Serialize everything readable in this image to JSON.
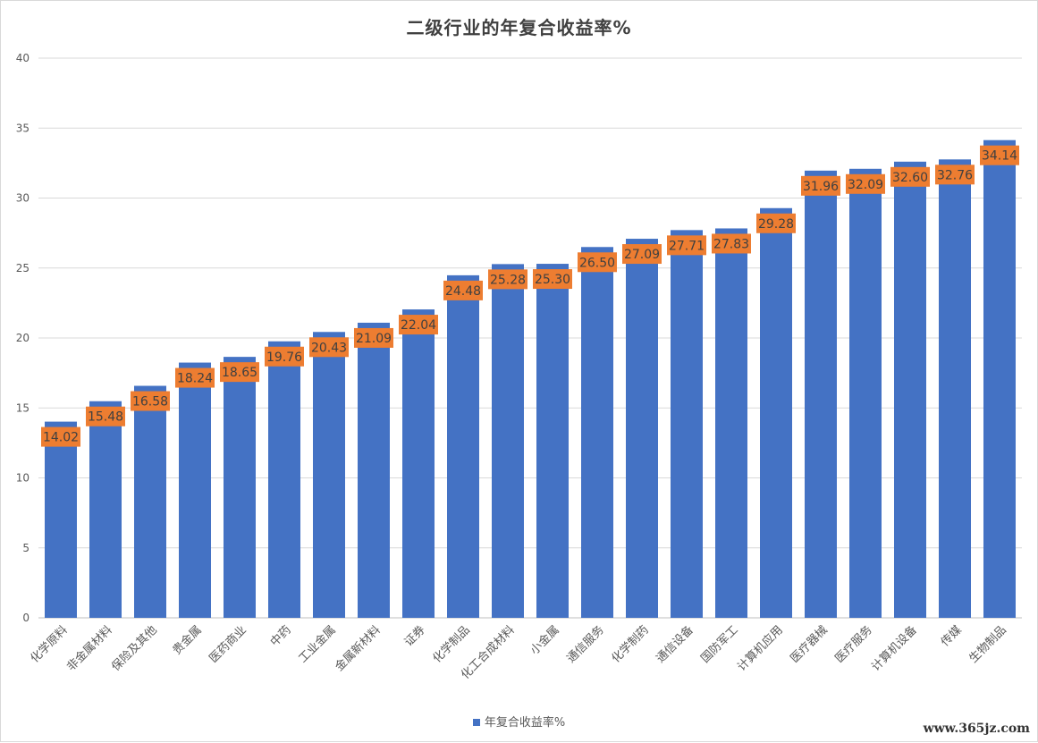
{
  "chart_data": {
    "type": "bar",
    "title": "二级行业的年复合收益率%",
    "xlabel": "",
    "ylabel": "",
    "ylim": [
      0,
      40
    ],
    "yticks": [
      0,
      5,
      10,
      15,
      20,
      25,
      30,
      35,
      40
    ],
    "grid": true,
    "legend_position": "bottom",
    "categories": [
      "化学原料",
      "非金属材料",
      "保险及其他",
      "贵金属",
      "医药商业",
      "中药",
      "工业金属",
      "金属新材料",
      "证券",
      "化学制品",
      "化工合成材料",
      "小金属",
      "通信服务",
      "化学制药",
      "通信设备",
      "国防军工",
      "计算机应用",
      "医疗器械",
      "医疗服务",
      "计算机设备",
      "传媒",
      "生物制品"
    ],
    "series": [
      {
        "name": "年复合收益率%",
        "color": "#4472c4",
        "values": [
          14.02,
          15.48,
          16.58,
          18.24,
          18.65,
          19.76,
          20.43,
          21.09,
          22.04,
          24.48,
          25.28,
          25.3,
          26.5,
          27.09,
          27.71,
          27.83,
          29.28,
          31.96,
          32.09,
          32.6,
          32.76,
          34.14
        ],
        "data_labels": [
          "14.02",
          "15.48",
          "16.58",
          "18.24",
          "18.65",
          "19.76",
          "20.43",
          "21.09",
          "22.04",
          "24.48",
          "25.28",
          "25.30",
          "26.50",
          "27.09",
          "27.71",
          "27.83",
          "29.28",
          "31.96",
          "32.09",
          "32.60",
          "32.76",
          "34.14"
        ]
      }
    ],
    "data_label_color": "#ed7d31",
    "gridline_color": "#d9d9d9"
  },
  "legend": {
    "label": "年复合收益率%"
  },
  "watermark": "www.365jz.com"
}
